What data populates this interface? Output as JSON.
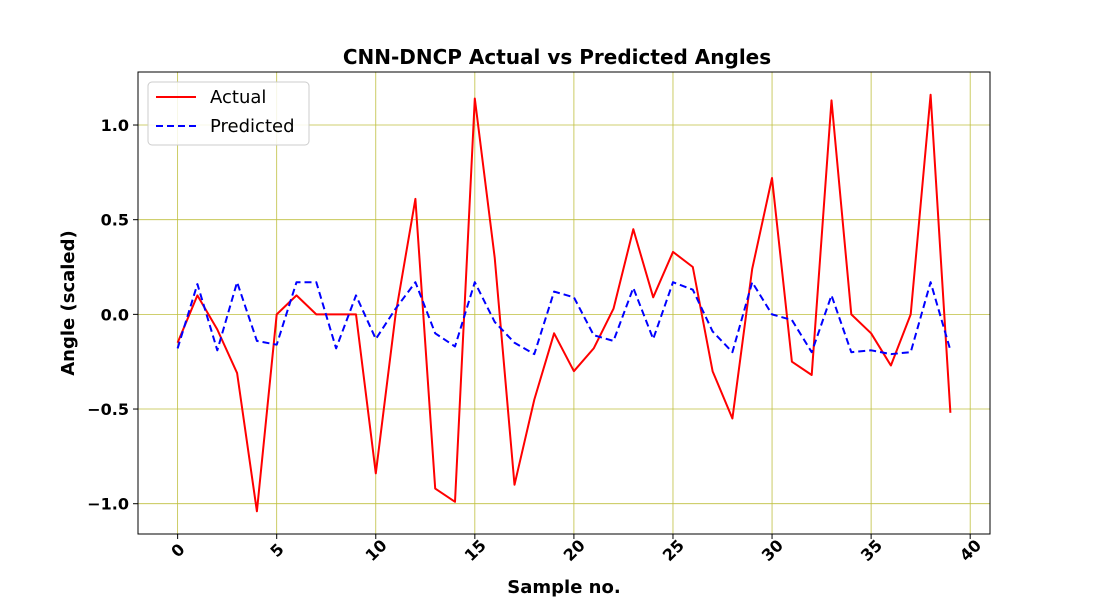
{
  "chart_data": {
    "type": "line",
    "title": "CNN-DNCP Actual vs Predicted Angles",
    "xlabel": "Sample no.",
    "ylabel": "Angle (scaled)",
    "xlim": [
      -2,
      41
    ],
    "ylim": [
      -1.16,
      1.28
    ],
    "xticks": [
      0,
      5,
      10,
      15,
      20,
      25,
      30,
      35,
      40
    ],
    "xtick_labels": [
      "0",
      "5",
      "10",
      "15",
      "20",
      "25",
      "30",
      "35",
      "40"
    ],
    "yticks": [
      1.0,
      0.5,
      0.0,
      -0.5,
      -1.0
    ],
    "ytick_labels": [
      "1.0",
      "0.5",
      "0.0",
      "−0.5",
      "−1.0"
    ],
    "grid": true,
    "grid_color": "#bfbf3f",
    "legend_position": "upper-left",
    "x": [
      0,
      1,
      2,
      3,
      4,
      5,
      6,
      7,
      8,
      9,
      10,
      11,
      12,
      13,
      14,
      15,
      16,
      17,
      18,
      19,
      20,
      21,
      22,
      23,
      24,
      25,
      26,
      27,
      28,
      29,
      30,
      31,
      32,
      33,
      34,
      35,
      36,
      37,
      38,
      39
    ],
    "series": [
      {
        "name": "Actual",
        "color": "#ff0000",
        "style": "solid",
        "values": [
          -0.15,
          0.1,
          -0.08,
          -0.31,
          -1.04,
          0.0,
          0.1,
          0.0,
          0.0,
          0.0,
          -0.84,
          0.0,
          0.61,
          -0.92,
          -0.99,
          1.14,
          0.3,
          -0.9,
          -0.45,
          -0.1,
          -0.3,
          -0.18,
          0.03,
          0.45,
          0.09,
          0.33,
          0.25,
          -0.3,
          -0.55,
          0.24,
          0.72,
          -0.25,
          -0.32,
          1.13,
          0.0,
          -0.1,
          -0.27,
          0.0,
          1.16,
          -0.52
        ]
      },
      {
        "name": "Predicted",
        "color": "#0000ff",
        "style": "dashed",
        "values": [
          -0.18,
          0.16,
          -0.19,
          0.17,
          -0.14,
          -0.16,
          0.17,
          0.17,
          -0.18,
          0.1,
          -0.13,
          0.03,
          0.17,
          -0.1,
          -0.17,
          0.17,
          -0.04,
          -0.15,
          -0.21,
          0.12,
          0.09,
          -0.11,
          -0.14,
          0.14,
          -0.13,
          0.17,
          0.13,
          -0.09,
          -0.2,
          0.17,
          0.0,
          -0.03,
          -0.2,
          0.1,
          -0.2,
          -0.19,
          -0.21,
          -0.2,
          0.17,
          -0.19
        ]
      }
    ]
  }
}
